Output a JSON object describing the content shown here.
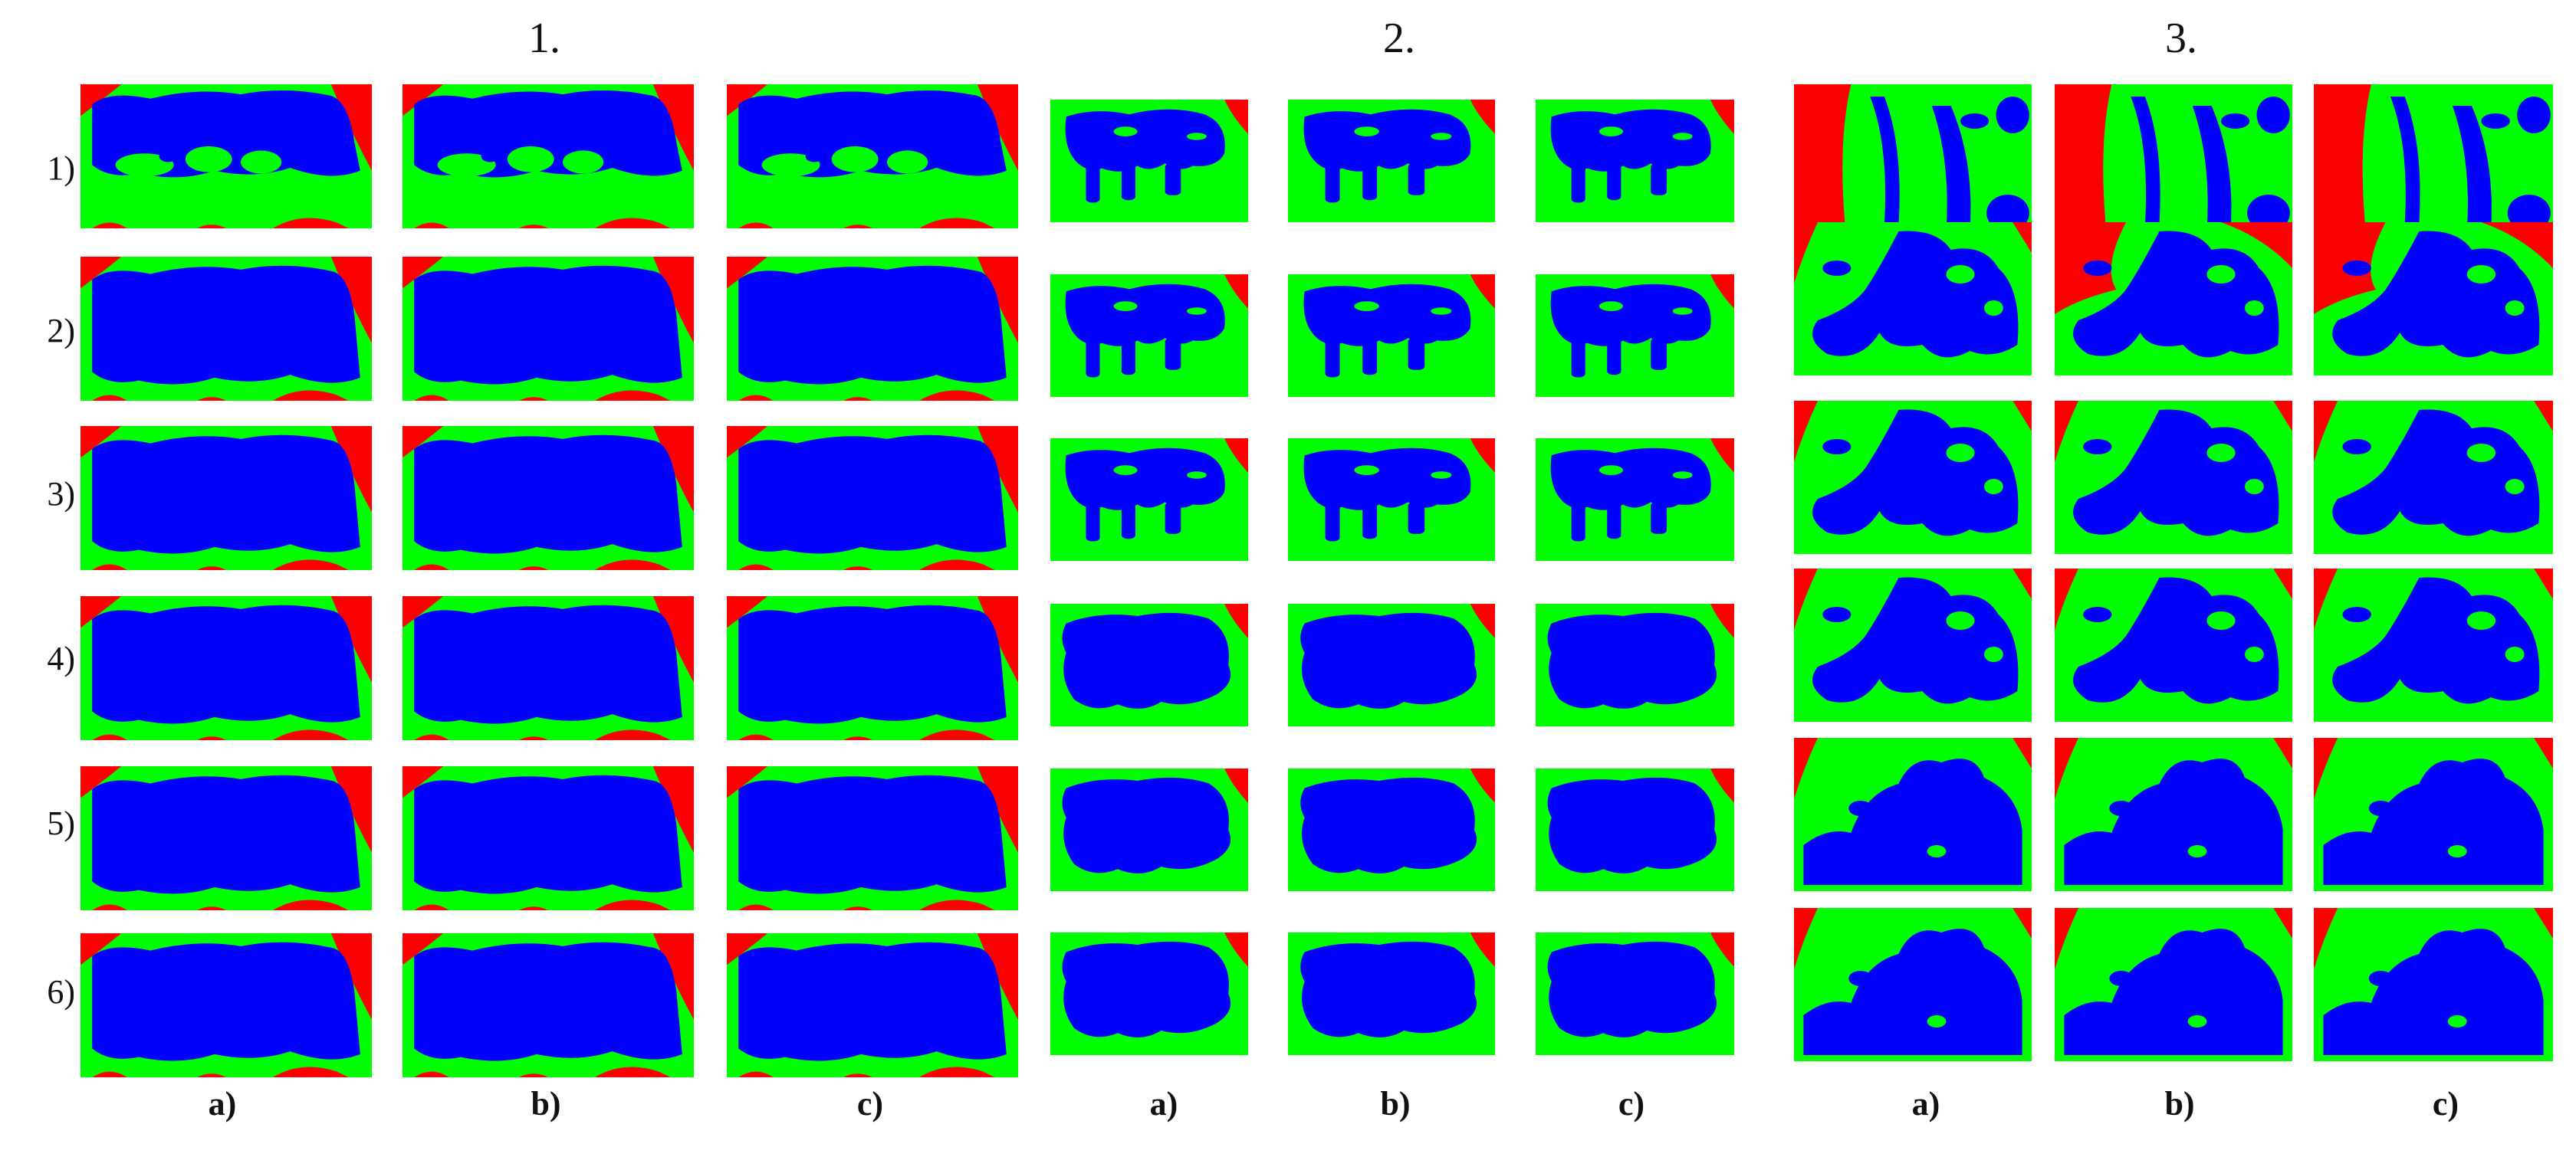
{
  "figure": {
    "group_labels": [
      "1.",
      "2.",
      "3."
    ],
    "row_labels": [
      "1)",
      "2)",
      "3)",
      "4)",
      "5)",
      "6)"
    ],
    "column_labels": [
      "a)",
      "b)",
      "c)"
    ],
    "colors": {
      "region_red": "#ff0000",
      "region_green": "#00ff00",
      "region_blue": "#0000ff",
      "background": "#ffffff"
    }
  }
}
